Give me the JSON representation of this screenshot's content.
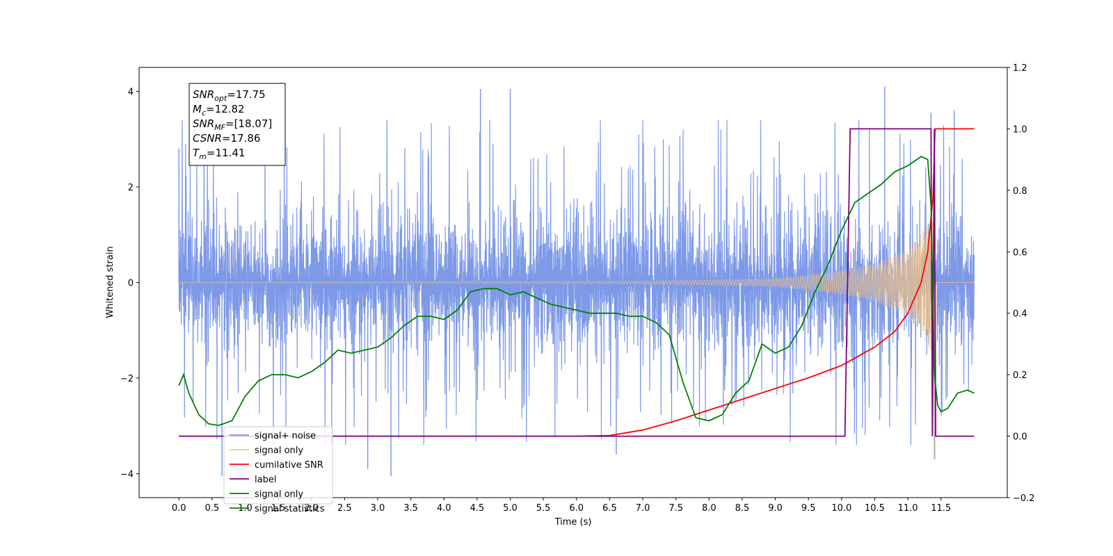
{
  "chart_data": {
    "type": "line",
    "xlabel": "Time (s)",
    "ylabel": "Whitened strain",
    "xlim": [
      -0.6,
      12.5
    ],
    "ylim": [
      -4.5,
      4.5
    ],
    "y2lim": [
      -0.2,
      1.2
    ],
    "x_ticks": [
      0.0,
      0.5,
      1.0,
      1.5,
      2.0,
      2.5,
      3.0,
      3.5,
      4.0,
      4.5,
      5.0,
      5.5,
      6.0,
      6.5,
      7.0,
      7.5,
      8.0,
      8.5,
      9.0,
      9.5,
      10.0,
      10.5,
      11.0,
      11.5
    ],
    "x_tick_labels": [
      "0.0",
      "0.5",
      "1.0",
      "1.5",
      "2.0",
      "2.5",
      "3.0",
      "3.5",
      "4.0",
      "4.5",
      "5.0",
      "5.5",
      "6.0",
      "6.5",
      "7.0",
      "7.5",
      "8.0",
      "8.5",
      "9.0",
      "9.5",
      "10.0",
      "10.5",
      "11.0",
      "11.5"
    ],
    "y_ticks": [
      -4,
      -2,
      0,
      2,
      4
    ],
    "y_tick_labels": [
      "−4",
      "−2",
      "0",
      "2",
      "4"
    ],
    "y2_ticks": [
      -0.2,
      0.0,
      0.2,
      0.4,
      0.6,
      0.8,
      1.0,
      1.2
    ],
    "y2_tick_labels": [
      "−0.2",
      "0.0",
      "0.2",
      "0.4",
      "0.6",
      "0.8",
      "1.0",
      "1.2"
    ],
    "grid": false,
    "legend_position": "bottom-left",
    "legend": [
      {
        "label": "signal+ noise",
        "color": "#7693e6"
      },
      {
        "label": "signal only",
        "color": "#ffc878"
      },
      {
        "label": "cumilative SNR",
        "color": "#ff0000"
      },
      {
        "label": "label",
        "color": "#800080"
      },
      {
        "label": "signal only",
        "color": "#008000"
      },
      {
        "label": "signal statistics",
        "color": "#008000"
      }
    ],
    "annotation": {
      "lines": [
        {
          "sym": "SNR",
          "sub": "opt",
          "value": "=17.75"
        },
        {
          "sym": "M",
          "sub": "c",
          "value": "=12.82"
        },
        {
          "sym": "SNR",
          "sub": "MF",
          "value": "=[18.07]"
        },
        {
          "sym": "CSNR",
          "sub": "",
          "value": "=17.86"
        },
        {
          "sym": "T",
          "sub": "m",
          "value": "=11.41"
        }
      ]
    },
    "series": [
      {
        "name": "signal+ noise",
        "axis": "left",
        "color": "#7693e6",
        "style": "noise",
        "x_range": [
          0.0,
          12.0
        ],
        "typical_range": [
          -1.9,
          1.9
        ],
        "extremes": [
          {
            "x": 0.0,
            "y": 2.8
          },
          {
            "x": 0.65,
            "y": -4.05
          },
          {
            "x": 1.3,
            "y": 3.7
          },
          {
            "x": 2.85,
            "y": -3.9
          },
          {
            "x": 3.2,
            "y": -4.05
          },
          {
            "x": 4.55,
            "y": 4.05
          },
          {
            "x": 5.0,
            "y": 4.05
          },
          {
            "x": 6.6,
            "y": -3.6
          },
          {
            "x": 10.65,
            "y": 4.1
          },
          {
            "x": 11.35,
            "y": 3.55
          },
          {
            "x": 11.7,
            "y": 3.6
          },
          {
            "x": 11.4,
            "y": -3.7
          }
        ]
      },
      {
        "name": "signal only",
        "axis": "left",
        "color": "#ffc878",
        "style": "chirp",
        "x_range": [
          0.0,
          12.0
        ],
        "t_merger": 11.41,
        "amplitude_envelope": [
          [
            0.0,
            0.01
          ],
          [
            7.0,
            0.03
          ],
          [
            9.0,
            0.08
          ],
          [
            10.0,
            0.25
          ],
          [
            10.5,
            0.4
          ],
          [
            11.0,
            0.7
          ],
          [
            11.3,
            1.3
          ],
          [
            11.38,
            1.6
          ],
          [
            11.41,
            -3.7
          ],
          [
            11.45,
            0.05
          ],
          [
            12.0,
            0.0
          ]
        ]
      },
      {
        "name": "cumilative SNR",
        "axis": "right",
        "color": "#ff0000",
        "x": [
          0.0,
          6.0,
          6.5,
          7.0,
          7.5,
          8.0,
          8.5,
          9.0,
          9.5,
          10.0,
          10.5,
          10.8,
          11.0,
          11.2,
          11.3,
          11.38,
          11.41,
          11.5,
          11.8,
          12.0
        ],
        "values": [
          0.0,
          0.0,
          0.002,
          0.02,
          0.05,
          0.085,
          0.12,
          0.155,
          0.19,
          0.23,
          0.29,
          0.34,
          0.4,
          0.5,
          0.6,
          0.78,
          1.0,
          1.0,
          1.0,
          1.0
        ]
      },
      {
        "name": "label",
        "axis": "right",
        "color": "#800080",
        "x": [
          0.0,
          10.05,
          10.13,
          11.35,
          11.37,
          11.4,
          11.42,
          12.0
        ],
        "values": [
          0.0,
          0.0,
          1.0,
          1.0,
          0.0,
          1.0,
          0.0,
          0.0
        ]
      },
      {
        "name": "signal statistics",
        "axis": "right",
        "color": "#008000",
        "x": [
          0.0,
          0.07,
          0.15,
          0.3,
          0.45,
          0.6,
          0.8,
          1.0,
          1.2,
          1.4,
          1.6,
          1.8,
          2.0,
          2.2,
          2.4,
          2.6,
          2.8,
          3.0,
          3.2,
          3.4,
          3.6,
          3.8,
          4.0,
          4.2,
          4.4,
          4.6,
          4.8,
          5.0,
          5.2,
          5.4,
          5.6,
          5.8,
          6.0,
          6.2,
          6.4,
          6.6,
          6.8,
          7.0,
          7.2,
          7.4,
          7.6,
          7.8,
          8.0,
          8.2,
          8.4,
          8.6,
          8.8,
          9.0,
          9.2,
          9.4,
          9.6,
          9.8,
          10.0,
          10.2,
          10.4,
          10.6,
          10.8,
          11.0,
          11.2,
          11.3,
          11.35,
          11.4,
          11.45,
          11.5,
          11.6,
          11.75,
          11.9,
          12.0
        ],
        "values": [
          0.165,
          0.2,
          0.14,
          0.07,
          0.04,
          0.035,
          0.05,
          0.13,
          0.18,
          0.2,
          0.2,
          0.19,
          0.21,
          0.24,
          0.28,
          0.27,
          0.28,
          0.29,
          0.32,
          0.36,
          0.39,
          0.39,
          0.38,
          0.41,
          0.47,
          0.48,
          0.48,
          0.46,
          0.47,
          0.45,
          0.43,
          0.42,
          0.41,
          0.4,
          0.4,
          0.4,
          0.39,
          0.39,
          0.37,
          0.33,
          0.18,
          0.06,
          0.05,
          0.07,
          0.14,
          0.18,
          0.3,
          0.27,
          0.29,
          0.36,
          0.47,
          0.56,
          0.67,
          0.76,
          0.79,
          0.82,
          0.86,
          0.88,
          0.91,
          0.9,
          0.75,
          0.2,
          0.1,
          0.08,
          0.09,
          0.14,
          0.15,
          0.14
        ]
      }
    ]
  }
}
